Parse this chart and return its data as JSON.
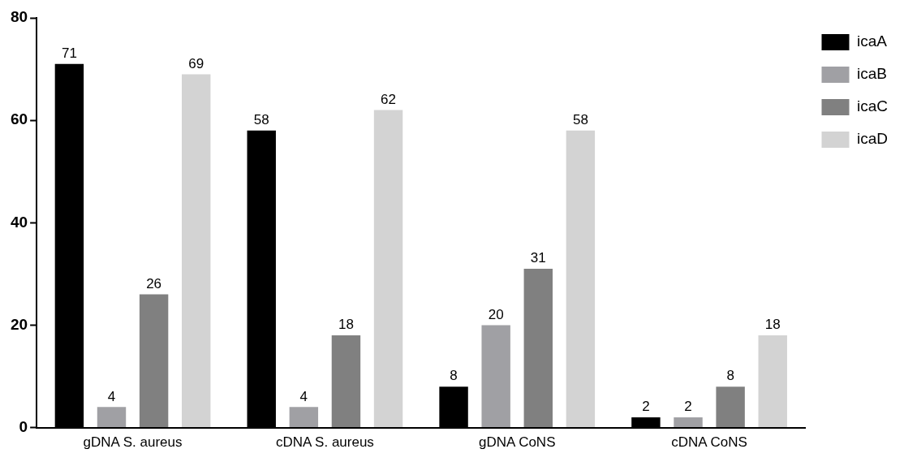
{
  "chart_data": {
    "type": "bar",
    "categories": [
      "gDNA S. aureus",
      "cDNA S. aureus",
      "gDNA CoNS",
      "cDNA CoNS"
    ],
    "series": [
      {
        "name": "icaA",
        "color": "#000000",
        "values": [
          71,
          58,
          8,
          2
        ]
      },
      {
        "name": "icaB",
        "color": "#a0a0a4",
        "values": [
          4,
          4,
          20,
          2
        ]
      },
      {
        "name": "icaC",
        "color": "#808080",
        "values": [
          26,
          18,
          31,
          8
        ]
      },
      {
        "name": "icaD",
        "color": "#d3d3d3",
        "values": [
          69,
          62,
          58,
          18
        ]
      }
    ],
    "ylim": [
      0,
      80
    ],
    "yticks": [
      0,
      20,
      40,
      60,
      80
    ],
    "grid": false,
    "legend": "right",
    "data_labels": true
  }
}
